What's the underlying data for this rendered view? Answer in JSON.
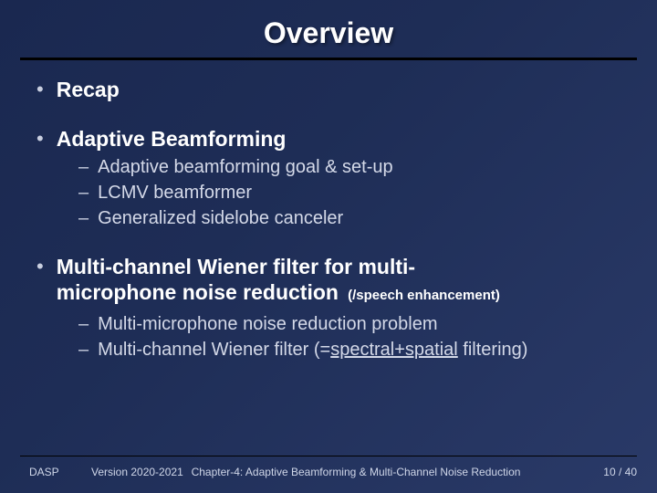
{
  "slide": {
    "title": "Overview",
    "background_gradient": [
      "#1a2850",
      "#2a3a68"
    ],
    "title_color": "#ffffff",
    "text_color": "#d4d9e8",
    "underline_color": "#000000",
    "title_fontsize": 32,
    "bullet_fontsize": 23,
    "sub_fontsize": 20,
    "footer_fontsize": 12
  },
  "bullets": {
    "b1": {
      "text": "Recap"
    },
    "b2": {
      "text": "Adaptive Beamforming",
      "sub": {
        "s1": "Adaptive beamforming goal & set-up",
        "s2": "LCMV beamformer",
        "s3": "Generalized sidelobe canceler"
      }
    },
    "b3": {
      "text_line1": "Multi-channel Wiener filter for multi-",
      "text_line2_a": "microphone noise reduction",
      "text_line2_note": " (/speech enhancement)",
      "sub": {
        "s1": "Multi-microphone noise reduction problem",
        "s2_a": "Multi-channel Wiener filter (=",
        "s2_u": "spectral+spatial",
        "s2_b": " filtering)"
      }
    }
  },
  "footer": {
    "left": "DASP",
    "version": "Version 2020-2021",
    "center": "Chapter-4: Adaptive Beamforming & Multi-Channel Noise Reduction",
    "page_current": "10",
    "page_sep": " / ",
    "page_total": "40"
  }
}
